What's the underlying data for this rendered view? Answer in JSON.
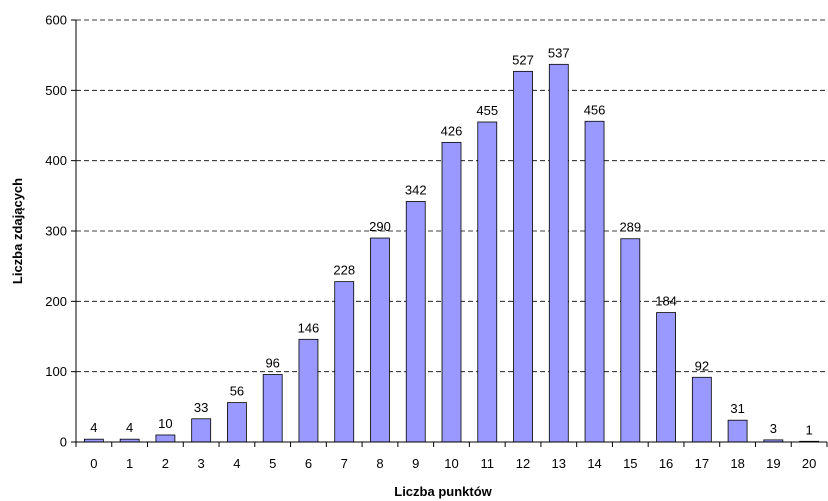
{
  "chart_data": {
    "type": "bar",
    "title": "",
    "xlabel": "Liczba punktów",
    "ylabel": "Liczba zdających",
    "categories": [
      "0",
      "1",
      "2",
      "3",
      "4",
      "5",
      "6",
      "7",
      "8",
      "9",
      "10",
      "11",
      "12",
      "13",
      "14",
      "15",
      "16",
      "17",
      "18",
      "19",
      "20"
    ],
    "values": [
      4,
      4,
      10,
      33,
      56,
      96,
      146,
      228,
      290,
      342,
      426,
      455,
      527,
      537,
      456,
      289,
      184,
      92,
      31,
      3,
      1
    ],
    "ylim": [
      0,
      600
    ],
    "yticks": [
      "0",
      "100",
      "200",
      "300",
      "400",
      "500",
      "600"
    ],
    "grid": "horizontal-dashed",
    "legend": "none",
    "colors": {
      "bar_fill": "#9999FF",
      "bar_stroke": "#000000",
      "grid": "#000000",
      "axis": "#000000"
    }
  }
}
